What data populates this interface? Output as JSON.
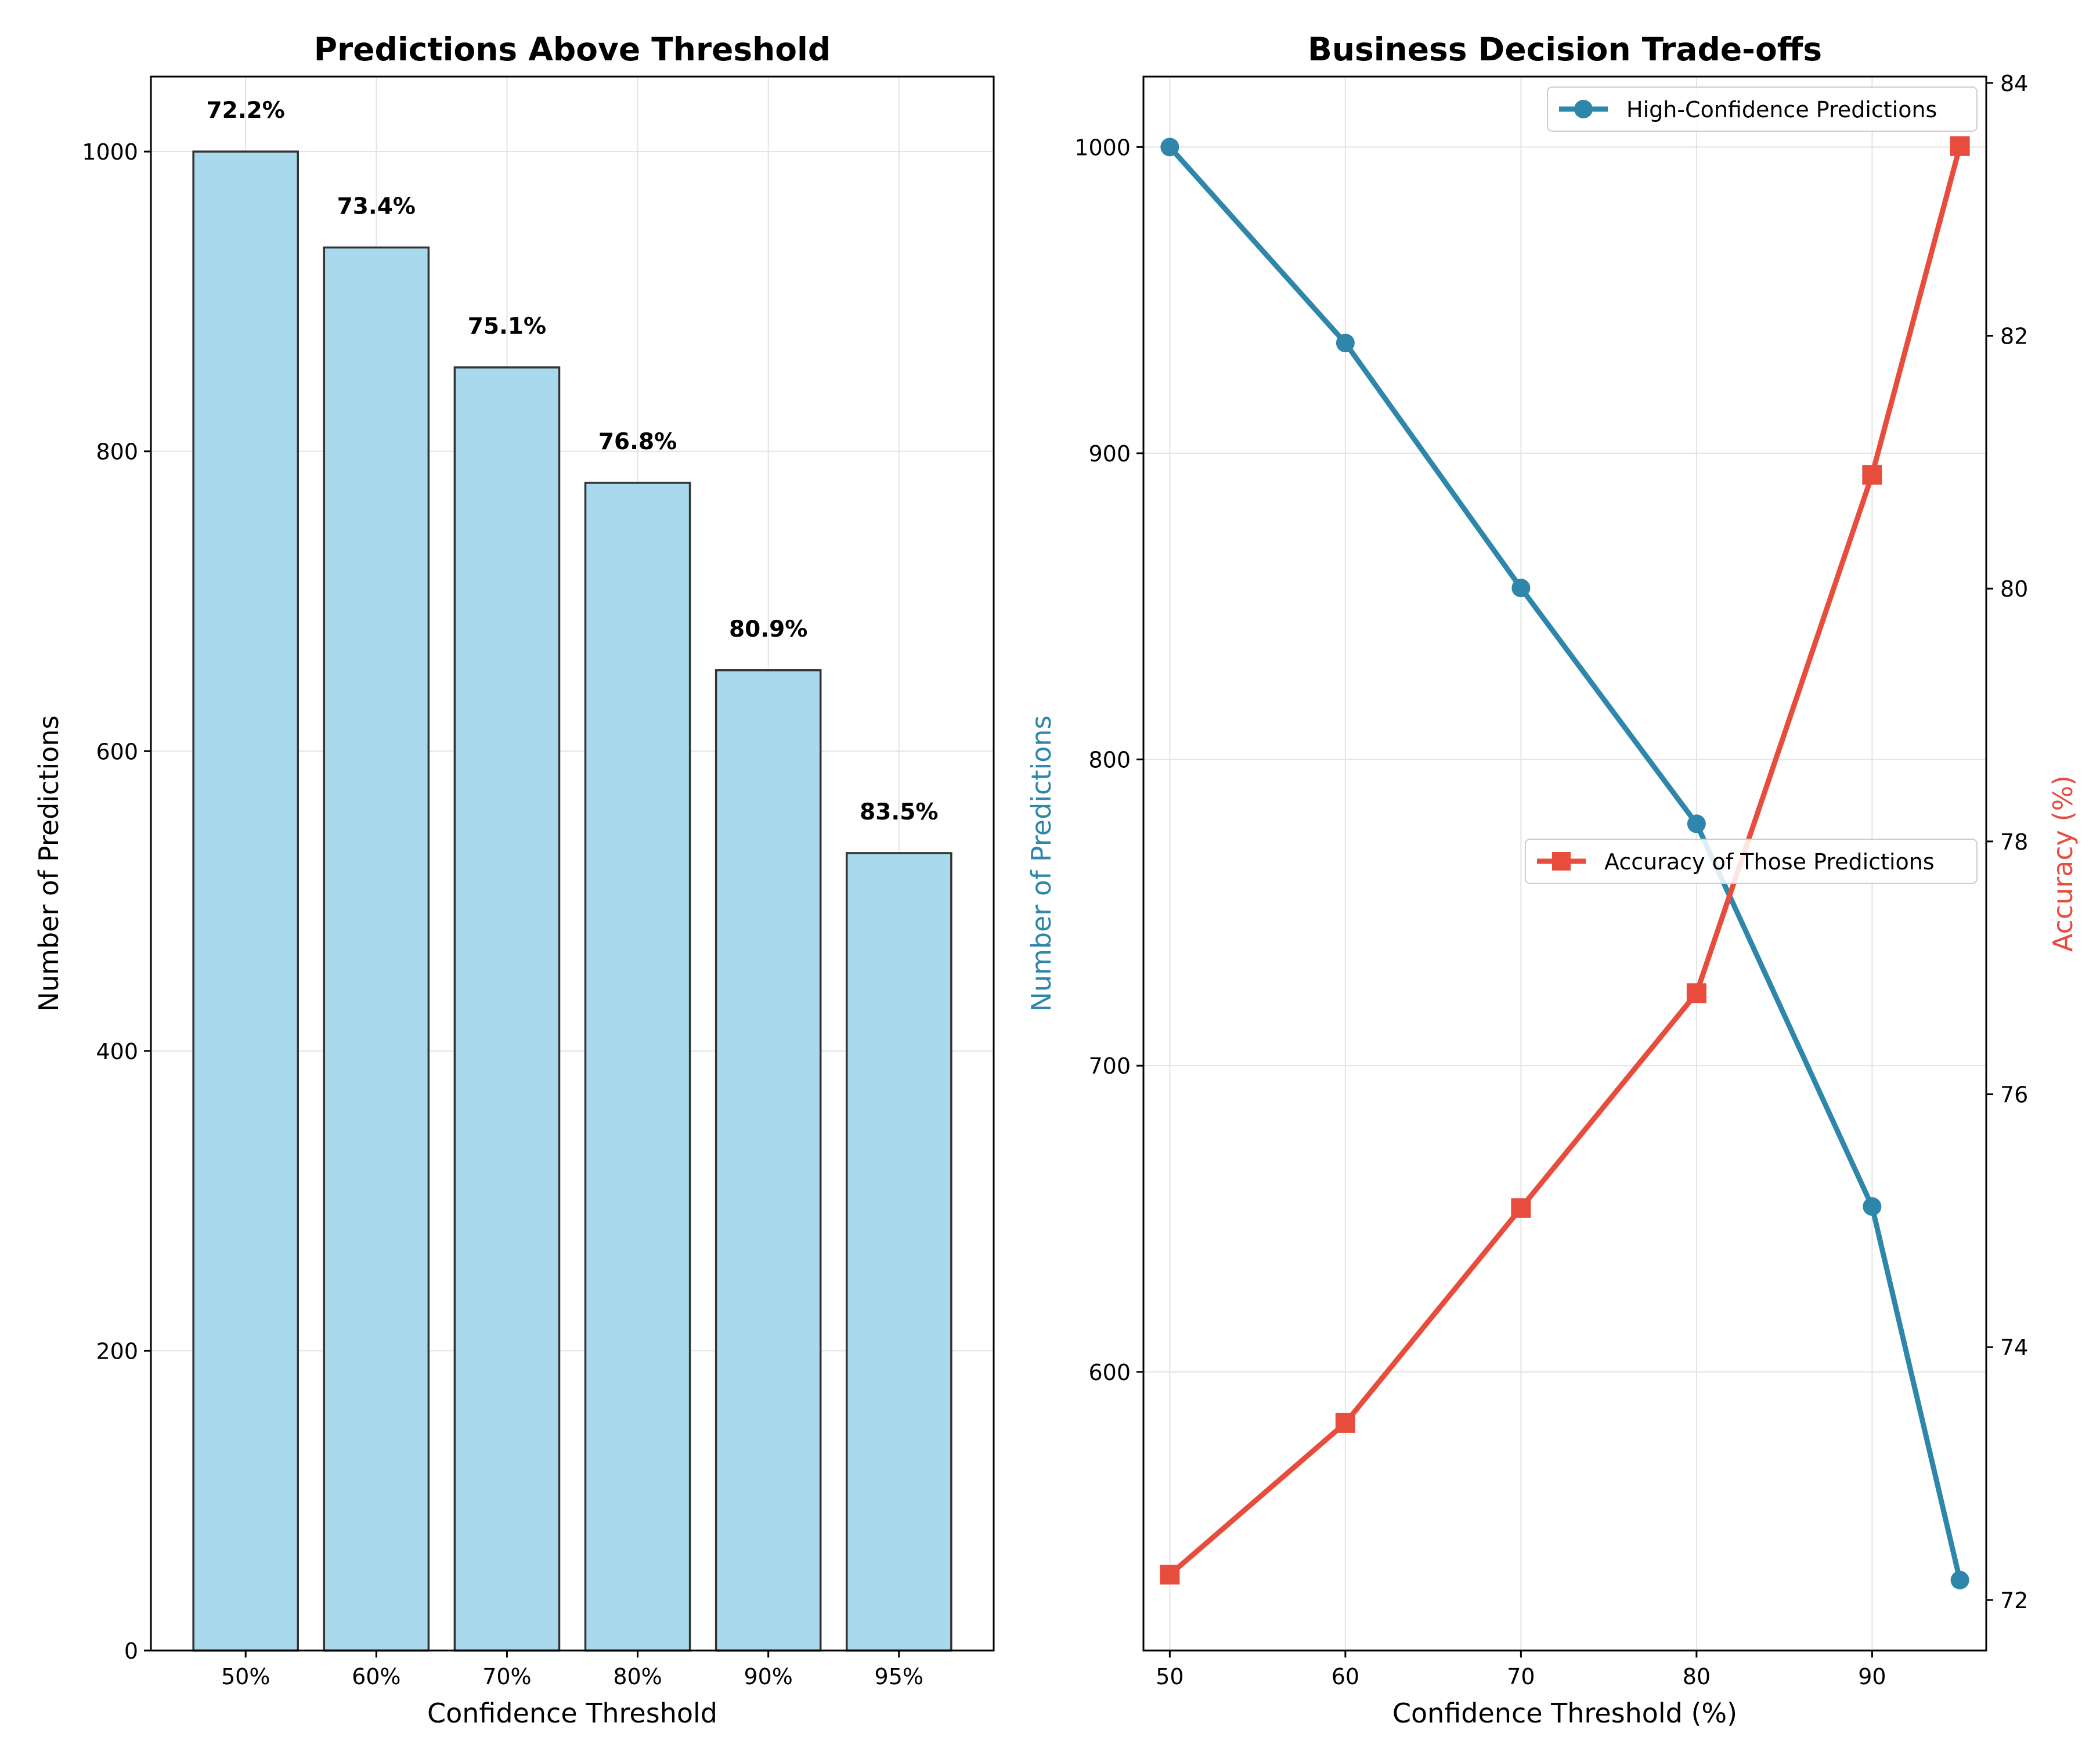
{
  "chart_data": [
    {
      "type": "bar",
      "title": "Predictions Above Threshold",
      "xlabel": "Confidence Threshold",
      "ylabel": "Number of Predictions",
      "categories": [
        "50%",
        "60%",
        "70%",
        "80%",
        "90%",
        "95%"
      ],
      "values": [
        1000,
        936,
        856,
        779,
        654,
        532
      ],
      "bar_labels": [
        "72.2%",
        "73.4%",
        "75.1%",
        "76.8%",
        "80.9%",
        "83.5%"
      ],
      "ylim": [
        0,
        1050
      ],
      "yticks": [
        0,
        200,
        400,
        600,
        800,
        1000
      ],
      "grid": true,
      "colors": {
        "bar_fill": "#a8d9ec",
        "bar_edge": "#333333"
      }
    },
    {
      "type": "line",
      "title": "Business Decision Trade-offs",
      "xlabel": "Confidence Threshold (%)",
      "x": [
        50,
        60,
        70,
        80,
        90,
        95
      ],
      "xlim": [
        48.5,
        96.5
      ],
      "xticks": [
        50,
        60,
        70,
        80,
        90
      ],
      "grid": true,
      "left_axis": {
        "label": "Number of Predictions",
        "color": "#2e86ab",
        "ylim": [
          509,
          1023
        ],
        "yticks": [
          600,
          700,
          800,
          900,
          1000
        ]
      },
      "right_axis": {
        "label": "Accuracy (%)",
        "color": "#e74c3c",
        "ylim": [
          71.6,
          84.05
        ],
        "yticks": [
          72,
          74,
          76,
          78,
          80,
          82,
          84
        ]
      },
      "series": [
        {
          "name": "High-Confidence Predictions",
          "axis": "left",
          "marker": "circle",
          "color": "#2e86ab",
          "values": [
            1000,
            936,
            856,
            779,
            654,
            532
          ],
          "legend_position": "top-right"
        },
        {
          "name": "Accuracy of Those Predictions",
          "axis": "right",
          "marker": "square",
          "color": "#e74c3c",
          "values": [
            72.2,
            73.4,
            75.1,
            76.8,
            80.9,
            83.5
          ],
          "legend_position": "center-right"
        }
      ]
    }
  ]
}
